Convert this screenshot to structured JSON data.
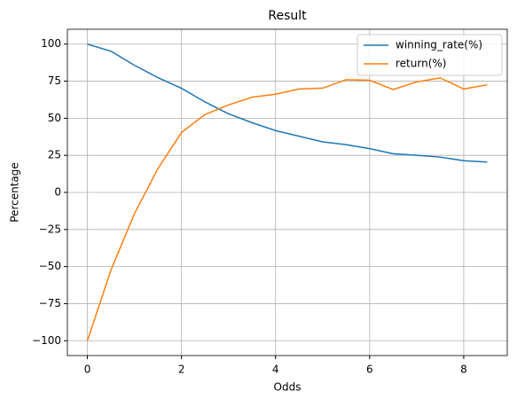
{
  "chart_data": {
    "type": "line",
    "title": "Result",
    "x_label": "Odds",
    "y_label": "Percentage",
    "x": [
      0,
      0.5,
      1,
      1.5,
      2,
      2.5,
      3,
      3.5,
      4,
      4.5,
      5,
      5.5,
      6,
      6.5,
      7,
      7.5,
      8,
      8.5
    ],
    "series": [
      {
        "name": "winning_rate(%)",
        "color": "#1f77b4",
        "values": [
          100,
          95.2,
          85.7,
          77.4,
          70.2,
          61,
          53,
          47,
          41.7,
          37.9,
          34.1,
          32.2,
          29.5,
          26.1,
          25,
          23.8,
          21.4,
          20.5
        ]
      },
      {
        "name": "return(%)",
        "color": "#ff7f0e",
        "values": [
          -100,
          -52.4,
          -14.3,
          16.1,
          40.4,
          52.5,
          59,
          64.2,
          66.2,
          69.7,
          70.3,
          76,
          75.6,
          69.4,
          74.5,
          77.2,
          69.7,
          72.6
        ]
      }
    ],
    "xlim": [
      -0.425,
      8.925
    ],
    "xticks": [
      0,
      2,
      4,
      6,
      8
    ],
    "ylim": [
      -110,
      110
    ],
    "yticks": [
      {
        "value": -100,
        "label": "−100"
      },
      {
        "value": -75,
        "label": "−75"
      },
      {
        "value": -50,
        "label": "−50"
      },
      {
        "value": -25,
        "label": "−25"
      },
      0,
      25,
      50,
      75,
      100
    ],
    "grid": true,
    "legend": "upper right"
  }
}
